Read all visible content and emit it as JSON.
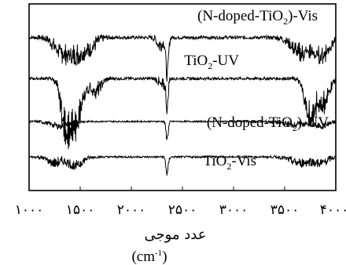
{
  "chart_data": {
    "type": "line",
    "title": "",
    "xlabel": "عدد موجی",
    "xunit": "(cm-1)",
    "xunit_parts": {
      "base": "(cm",
      "sup": "-1",
      "close": ")"
    },
    "xlim": [
      1000,
      4000
    ],
    "x_ticks": [
      1000,
      1500,
      2000,
      2500,
      3000,
      3500,
      4000
    ],
    "x_tick_labels": [
      "۱۰۰۰",
      "۱۵۰۰",
      "۲۰۰۰",
      "۲۵۰۰",
      "۳۰۰۰",
      "۳۵۰۰",
      "۴۰۰۰"
    ],
    "grid": false,
    "legend": "none",
    "series": [
      {
        "name": "(N-doped-TiO2)-Vis",
        "label_parts": {
          "pre": "(N-doped-TiO",
          "sub": "2",
          "post": ")-Vis"
        },
        "color": "#000000",
        "baseline": 0.82,
        "noise": 0.018,
        "features": [
          {
            "x": 1300,
            "depth": 0.07,
            "width": 90
          },
          {
            "x": 1450,
            "depth": 0.12,
            "width": 120
          },
          {
            "x": 1600,
            "depth": 0.05,
            "width": 80
          },
          {
            "x": 2350,
            "depth": 0.2,
            "width": 18
          },
          {
            "x": 2280,
            "depth": 0.05,
            "width": 40
          },
          {
            "x": 3650,
            "depth": 0.1,
            "width": 110
          },
          {
            "x": 3850,
            "depth": 0.12,
            "width": 110
          }
        ]
      },
      {
        "name": "TiO2-UV",
        "label_parts": {
          "pre": "TiO",
          "sub": "2",
          "post": "-UV"
        },
        "color": "#000000",
        "baseline": 0.6,
        "noise": 0.015,
        "features": [
          {
            "x": 1350,
            "depth": 0.24,
            "width": 60
          },
          {
            "x": 1450,
            "depth": 0.3,
            "width": 90
          },
          {
            "x": 1650,
            "depth": 0.08,
            "width": 70
          },
          {
            "x": 2350,
            "depth": 0.16,
            "width": 14
          },
          {
            "x": 2300,
            "depth": 0.05,
            "width": 40
          },
          {
            "x": 3750,
            "depth": 0.26,
            "width": 70
          },
          {
            "x": 3880,
            "depth": 0.16,
            "width": 70
          }
        ]
      },
      {
        "name": "(N-doped-TiO2)-UV",
        "label_parts": {
          "pre": "(N-doped-TiO",
          "sub": "2",
          "post": ")-UV"
        },
        "color": "#000000",
        "baseline": 0.37,
        "noise": 0.008,
        "features": [
          {
            "x": 1300,
            "depth": 0.03,
            "width": 120
          },
          {
            "x": 2350,
            "depth": 0.09,
            "width": 16
          },
          {
            "x": 3600,
            "depth": 0.02,
            "width": 150
          },
          {
            "x": 3850,
            "depth": 0.03,
            "width": 100
          }
        ]
      },
      {
        "name": "TiO2-Vis",
        "label_parts": {
          "pre": "TiO",
          "sub": "2",
          "post": "-Vis"
        },
        "color": "#000000",
        "baseline": 0.18,
        "noise": 0.01,
        "features": [
          {
            "x": 1250,
            "depth": 0.04,
            "width": 90
          },
          {
            "x": 1450,
            "depth": 0.06,
            "width": 90
          },
          {
            "x": 2350,
            "depth": 0.09,
            "width": 16
          },
          {
            "x": 3650,
            "depth": 0.04,
            "width": 120
          },
          {
            "x": 3850,
            "depth": 0.04,
            "width": 90
          }
        ]
      }
    ]
  }
}
